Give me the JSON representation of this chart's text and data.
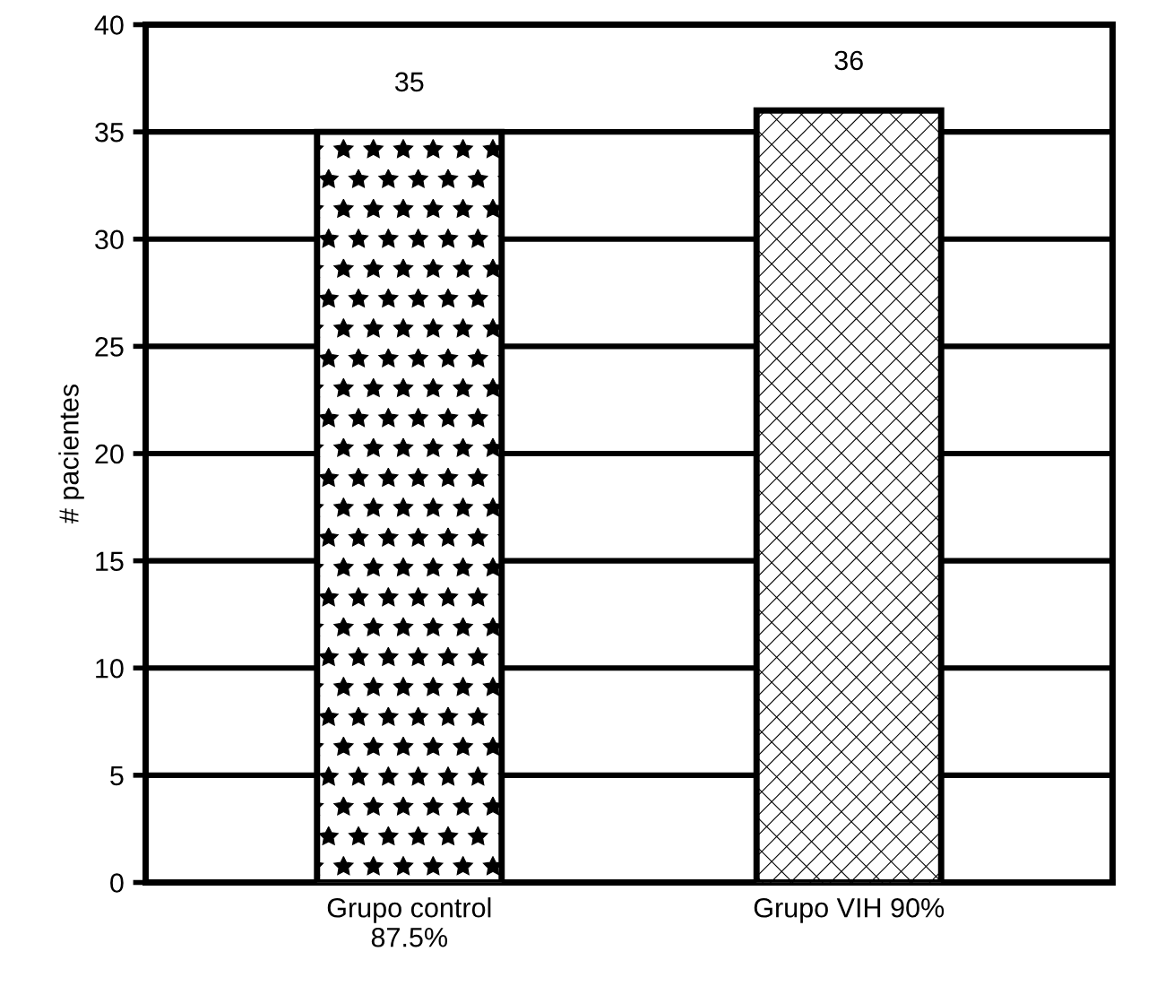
{
  "chart_data": {
    "type": "bar",
    "ylabel": "# pacientes",
    "categories": [
      "Grupo control\n87.5%",
      "Grupo VIH 90%"
    ],
    "values": [
      35,
      36
    ],
    "ylim": [
      0,
      40
    ],
    "yticks": [
      0,
      5,
      10,
      15,
      20,
      25,
      30,
      35,
      40
    ],
    "grid": "y",
    "data_labels": true
  }
}
